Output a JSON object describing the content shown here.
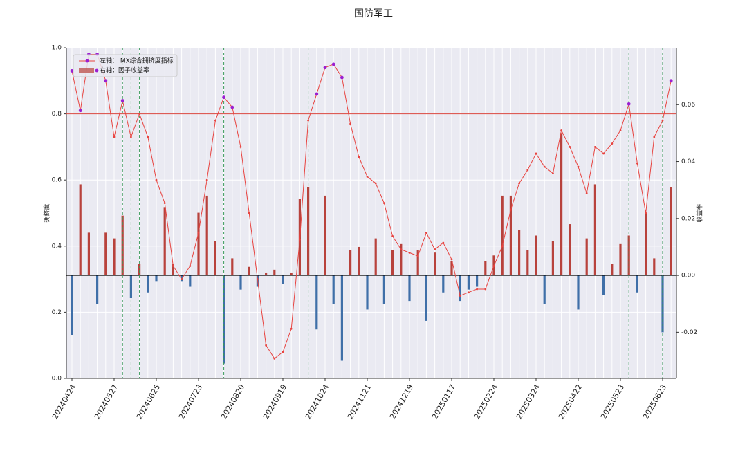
{
  "chart_data": {
    "type": "combo",
    "title": "国防军工",
    "ylabel": "拥挤度",
    "y2label": "收益率",
    "categories": [
      "20240424",
      null,
      null,
      null,
      null,
      "20240527",
      null,
      null,
      null,
      null,
      "20240625",
      null,
      null,
      null,
      null,
      "20240723",
      null,
      null,
      null,
      null,
      "20240820",
      null,
      null,
      null,
      null,
      "20240919",
      null,
      null,
      null,
      null,
      "20241024",
      null,
      null,
      null,
      null,
      "20241121",
      null,
      null,
      null,
      null,
      "20241219",
      null,
      null,
      null,
      null,
      "20250117",
      null,
      null,
      null,
      null,
      "20250224",
      null,
      null,
      null,
      null,
      "20250324",
      null,
      null,
      null,
      null,
      "20250422",
      null,
      null,
      null,
      null,
      "20250523",
      null,
      null,
      null,
      null,
      "20250623",
      null
    ],
    "series": [
      {
        "name": "左轴： MX综合拥挤度指标",
        "type": "line",
        "color": "#e8433f",
        "values": [
          0.93,
          0.81,
          0.98,
          0.98,
          0.9,
          0.73,
          0.84,
          0.73,
          0.8,
          0.73,
          0.6,
          0.53,
          0.34,
          0.3,
          0.34,
          0.44,
          0.6,
          0.78,
          0.85,
          0.82,
          0.7,
          0.5,
          0.3,
          0.1,
          0.06,
          0.08,
          0.15,
          0.42,
          0.78,
          0.86,
          0.94,
          0.95,
          0.91,
          0.77,
          0.67,
          0.61,
          0.59,
          0.53,
          0.43,
          0.39,
          0.38,
          0.37,
          0.44,
          0.39,
          0.41,
          0.36,
          0.25,
          0.26,
          0.27,
          0.27,
          0.34,
          0.4,
          0.51,
          0.59,
          0.63,
          0.68,
          0.64,
          0.62,
          0.75,
          0.7,
          0.64,
          0.56,
          0.7,
          0.68,
          0.71,
          0.75,
          0.83,
          0.65,
          0.5,
          0.73,
          0.78,
          0.9
        ]
      },
      {
        "name": "右轴：因子收益率",
        "type": "bar",
        "axis": "y2",
        "color": "#b8423c",
        "negative_color": "#3f6fa8",
        "values": [
          -0.021,
          0.032,
          0.015,
          -0.01,
          0.015,
          0.013,
          0.021,
          -0.008,
          0.004,
          -0.006,
          -0.002,
          0.024,
          0.004,
          -0.002,
          -0.004,
          0.022,
          0.028,
          0.012,
          -0.031,
          0.006,
          -0.005,
          0.003,
          -0.004,
          0.001,
          0.002,
          -0.003,
          0.001,
          0.027,
          0.031,
          -0.019,
          0.028,
          -0.01,
          -0.03,
          0.009,
          0.01,
          -0.012,
          0.013,
          -0.01,
          0.009,
          0.011,
          -0.009,
          0.009,
          -0.016,
          0.008,
          -0.006,
          0.005,
          -0.009,
          -0.005,
          -0.004,
          0.005,
          0.007,
          0.028,
          0.028,
          0.016,
          0.009,
          0.014,
          -0.01,
          0.012,
          0.05,
          0.018,
          -0.012,
          0.013,
          0.032,
          -0.007,
          0.004,
          0.011,
          0.014,
          -0.006,
          0.022,
          0.006,
          -0.02,
          0.031
        ]
      }
    ],
    "ylim": [
      0,
      1
    ],
    "yticks": [
      {
        "value": 0,
        "label": "0.0"
      },
      {
        "value": 0.2,
        "label": "0.2"
      },
      {
        "value": 0.4,
        "label": "0.4"
      },
      {
        "value": 0.6,
        "label": "0.6"
      },
      {
        "value": 0.8,
        "label": "0.8"
      },
      {
        "value": 1,
        "label": "1.0"
      }
    ],
    "y2lim": [
      -0.0362,
      0.08
    ],
    "y2ticks": [
      {
        "value": -0.02,
        "label": "-0.02"
      },
      {
        "value": 0,
        "label": "0.00"
      },
      {
        "value": 0.02,
        "label": "0.02"
      },
      {
        "value": 0.04,
        "label": "0.04"
      },
      {
        "value": 0.06,
        "label": "0.06"
      }
    ],
    "hline": 0.8,
    "hline_color": "#d9453f",
    "highlight_color": "#9b1fd1",
    "vlines": [
      6,
      7,
      8,
      18,
      28,
      66,
      70
    ],
    "vline_color": "#3a9a5a",
    "grid": true,
    "legend": "upper left"
  }
}
